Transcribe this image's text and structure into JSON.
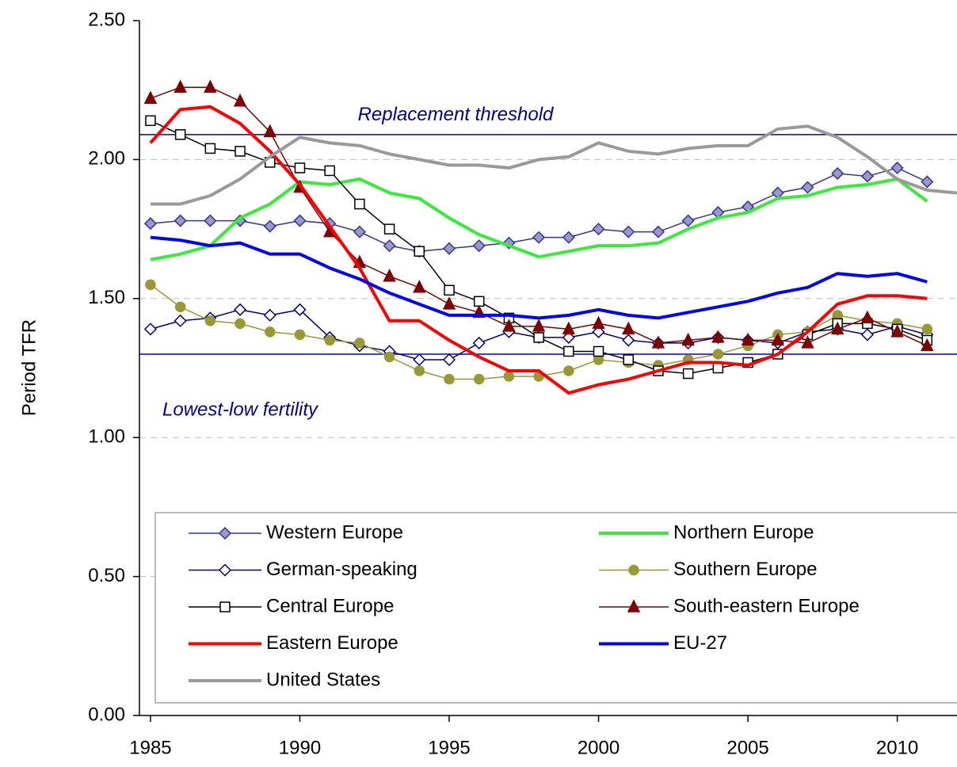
{
  "chart_data": {
    "type": "line",
    "y_label": "Period TFR",
    "x": [
      1985,
      1986,
      1987,
      1988,
      1989,
      1990,
      1991,
      1992,
      1993,
      1994,
      1995,
      1996,
      1997,
      1998,
      1999,
      2000,
      2001,
      2002,
      2003,
      2004,
      2005,
      2006,
      2007,
      2008,
      2009,
      2010,
      2011,
      2012
    ],
    "xlim": [
      1984.63,
      2012
    ],
    "xticks": [
      1985,
      1990,
      1995,
      2000,
      2005,
      2010
    ],
    "ylim": [
      0,
      2.5
    ],
    "yticks": [
      {
        "value": 0,
        "label": "0.00"
      },
      {
        "value": 0.5,
        "label": "0.50"
      },
      {
        "value": 1,
        "label": "1.00"
      },
      {
        "value": 1.5,
        "label": "1.50"
      },
      {
        "value": 2,
        "label": "2.00"
      },
      {
        "value": 2.5,
        "label": "2.50"
      }
    ],
    "grid": true,
    "reference_lines": [
      {
        "value": 2.09,
        "label": "Replacement threshold",
        "color": "#0000cc"
      },
      {
        "value": 1.3,
        "label": "Lowest-low fertility",
        "color": "#0000cc"
      }
    ],
    "series": [
      {
        "name": "Western Europe",
        "color": "#333399",
        "marker": "diamond",
        "marker_fill": "#9999cc",
        "width": 1.5,
        "values": [
          1.77,
          1.78,
          1.78,
          1.78,
          1.76,
          1.78,
          1.77,
          1.74,
          1.69,
          1.67,
          1.68,
          1.69,
          1.7,
          1.72,
          1.72,
          1.75,
          1.74,
          1.74,
          1.78,
          1.81,
          1.83,
          1.88,
          1.9,
          1.95,
          1.94,
          1.97,
          1.92,
          null
        ]
      },
      {
        "name": "Northern Europe",
        "color": "#33ee33",
        "marker": null,
        "width": 4,
        "values": [
          1.64,
          1.66,
          1.69,
          1.79,
          1.84,
          1.92,
          1.91,
          1.93,
          1.88,
          1.86,
          1.79,
          1.73,
          1.69,
          1.65,
          1.67,
          1.69,
          1.69,
          1.7,
          1.75,
          1.79,
          1.81,
          1.86,
          1.87,
          1.9,
          1.91,
          1.93,
          1.85,
          null
        ]
      },
      {
        "name": "German-speaking",
        "color": "#000080",
        "marker": "diamond",
        "marker_fill": "#ffffff",
        "width": 1.5,
        "values": [
          1.39,
          1.42,
          1.43,
          1.46,
          1.44,
          1.46,
          1.36,
          1.33,
          1.31,
          1.28,
          1.28,
          1.34,
          1.38,
          1.36,
          1.36,
          1.38,
          1.35,
          1.34,
          1.34,
          1.36,
          1.35,
          1.34,
          1.38,
          1.39,
          1.37,
          1.4,
          1.37,
          null
        ]
      },
      {
        "name": "Southern Europe",
        "color": "#999933",
        "marker": "circle",
        "marker_fill": "#999933",
        "width": 1.5,
        "values": [
          1.55,
          1.47,
          1.42,
          1.41,
          1.38,
          1.37,
          1.35,
          1.34,
          1.29,
          1.24,
          1.21,
          1.21,
          1.22,
          1.22,
          1.24,
          1.28,
          1.27,
          1.26,
          1.28,
          1.3,
          1.33,
          1.37,
          1.38,
          1.44,
          1.42,
          1.41,
          1.39,
          null
        ]
      },
      {
        "name": "Central Europe",
        "color": "#000000",
        "marker": "square",
        "marker_fill": "#ffffff",
        "width": 1.5,
        "values": [
          2.14,
          2.09,
          2.04,
          2.03,
          1.99,
          1.97,
          1.96,
          1.84,
          1.75,
          1.67,
          1.53,
          1.49,
          1.43,
          1.36,
          1.31,
          1.31,
          1.28,
          1.24,
          1.23,
          1.25,
          1.27,
          1.3,
          1.37,
          1.41,
          1.41,
          1.39,
          1.35,
          null
        ]
      },
      {
        "name": "South-eastern Europe",
        "color": "#800000",
        "marker": "triangle",
        "marker_fill": "#800000",
        "width": 1.5,
        "values": [
          2.22,
          2.26,
          2.26,
          2.21,
          2.1,
          1.9,
          1.74,
          1.63,
          1.58,
          1.54,
          1.48,
          1.45,
          1.4,
          1.4,
          1.39,
          1.41,
          1.39,
          1.34,
          1.35,
          1.36,
          1.35,
          1.35,
          1.34,
          1.39,
          1.43,
          1.38,
          1.33,
          null
        ]
      },
      {
        "name": "Eastern Europe",
        "color": "#ff0000",
        "marker": null,
        "width": 4,
        "values": [
          2.06,
          2.18,
          2.19,
          2.13,
          2.03,
          1.91,
          1.76,
          1.61,
          1.42,
          1.42,
          1.35,
          1.29,
          1.24,
          1.24,
          1.16,
          1.19,
          1.21,
          1.24,
          1.27,
          1.27,
          1.26,
          1.3,
          1.38,
          1.48,
          1.51,
          1.51,
          1.5,
          null
        ]
      },
      {
        "name": "EU-27",
        "color": "#0000ff",
        "marker": null,
        "width": 4,
        "values": [
          1.72,
          1.71,
          1.69,
          1.7,
          1.66,
          1.66,
          1.61,
          1.57,
          1.52,
          1.48,
          1.44,
          1.44,
          1.44,
          1.43,
          1.44,
          1.46,
          1.44,
          1.43,
          1.45,
          1.47,
          1.49,
          1.52,
          1.54,
          1.59,
          1.58,
          1.59,
          1.56,
          null
        ]
      },
      {
        "name": "United States",
        "color": "#999999",
        "marker": null,
        "width": 4,
        "values": [
          1.84,
          1.84,
          1.87,
          1.93,
          2.01,
          2.08,
          2.06,
          2.05,
          2.02,
          2.0,
          1.98,
          1.98,
          1.97,
          2.0,
          2.01,
          2.06,
          2.03,
          2.02,
          2.04,
          2.05,
          2.05,
          2.11,
          2.12,
          2.08,
          2.01,
          1.93,
          1.89,
          1.88
        ]
      }
    ]
  }
}
